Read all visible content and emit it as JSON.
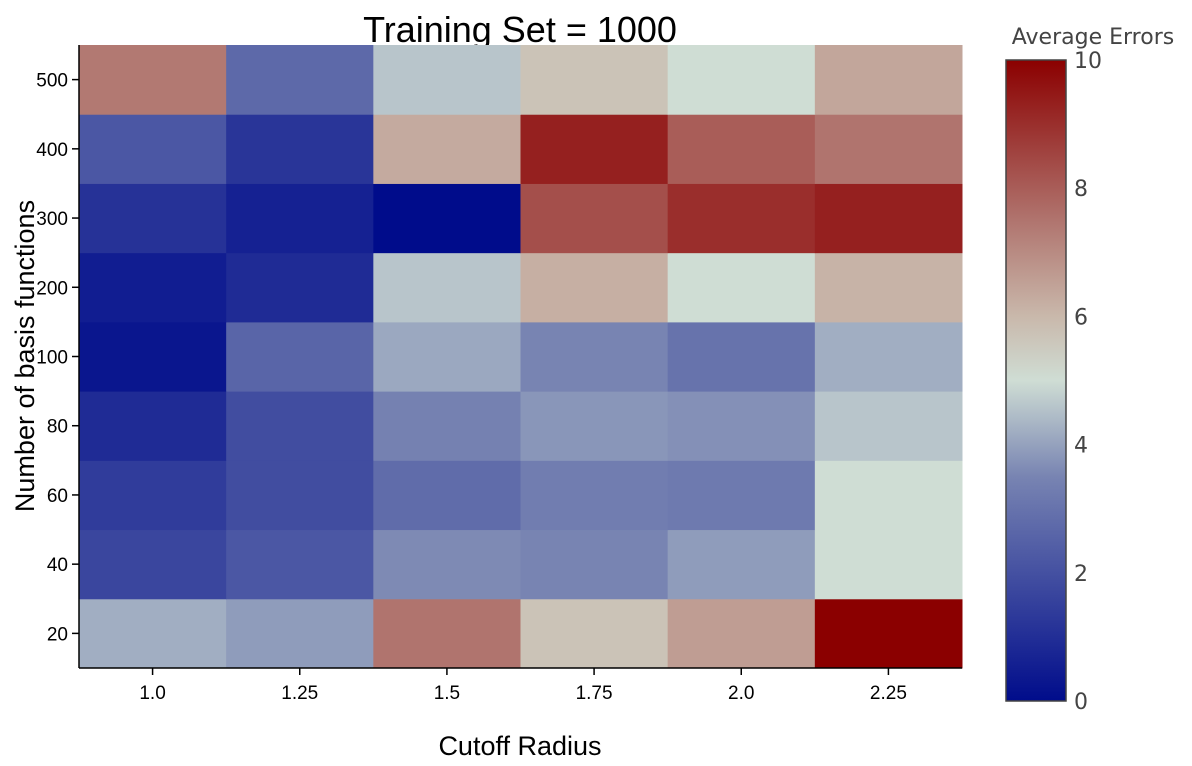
{
  "chart_data": {
    "type": "heatmap",
    "title": "Training Set = 1000",
    "xlabel": "Cutoff Radius",
    "ylabel": "Number of basis functions",
    "x": [
      "1.0",
      "1.25",
      "1.5",
      "1.75",
      "2.0",
      "2.25"
    ],
    "y": [
      "20",
      "40",
      "60",
      "80",
      "100",
      "200",
      "300",
      "400",
      "500"
    ],
    "z": [
      [
        4.2,
        3.9,
        7.5,
        5.7,
        6.6,
        10.0
      ],
      [
        1.7,
        2.2,
        3.6,
        3.5,
        3.9,
        5.0
      ],
      [
        1.4,
        1.9,
        2.8,
        3.3,
        3.2,
        5.0
      ],
      [
        0.9,
        1.9,
        3.4,
        3.8,
        3.7,
        4.6
      ],
      [
        0.3,
        2.6,
        4.1,
        3.5,
        3.0,
        4.2
      ],
      [
        0.5,
        0.9,
        4.6,
        6.2,
        5.0,
        6.1
      ],
      [
        1.1,
        0.6,
        0.0,
        8.3,
        9.0,
        9.3
      ],
      [
        2.2,
        1.2,
        6.3,
        9.3,
        8.0,
        7.5
      ],
      [
        7.4,
        2.7,
        4.6,
        5.7,
        5.0,
        6.4
      ]
    ],
    "colorbar": {
      "title": "Average Errors",
      "range": [
        0,
        10
      ],
      "ticks": [
        "0",
        "2",
        "4",
        "6",
        "8",
        "10"
      ]
    },
    "colorscale": [
      [
        0.0,
        "#000c8b"
      ],
      [
        0.35,
        "#7884b2"
      ],
      [
        0.5,
        "#cfddd4"
      ],
      [
        0.6,
        "#c9b8ab"
      ],
      [
        0.75,
        "#b0746e"
      ],
      [
        1.0,
        "#8b0000"
      ]
    ],
    "grid": false
  }
}
